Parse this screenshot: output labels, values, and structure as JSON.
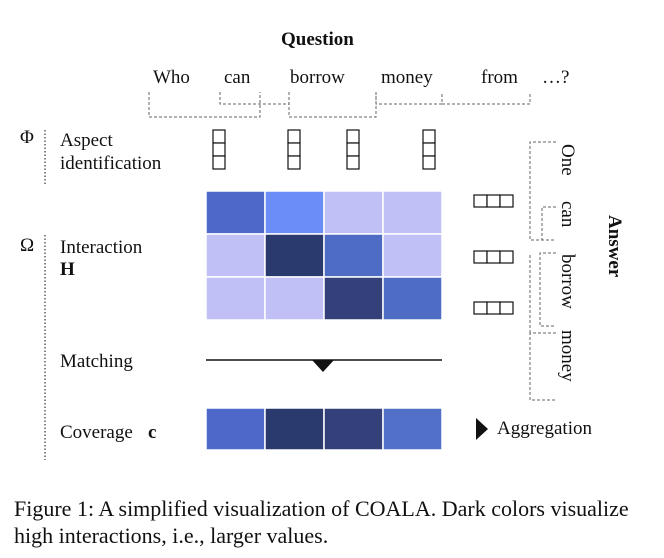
{
  "question": {
    "title": "Question",
    "tokens": [
      "Who",
      "can",
      "borrow",
      "money",
      "from",
      "…?"
    ]
  },
  "answer": {
    "title": "Answer",
    "tokens": [
      "One",
      "can",
      "borrow",
      "money"
    ]
  },
  "section_symbols": {
    "phi": "Φ",
    "omega": "Ω"
  },
  "rows": {
    "aspect": "Aspect identification",
    "aspect_line1": "Aspect",
    "aspect_line2": "identification",
    "interaction": "Interaction",
    "interaction_symbol": "H",
    "matching": "Matching",
    "coverage": "Coverage",
    "coverage_symbol": "c",
    "aggregation": "Aggregation"
  },
  "interaction_matrix": [
    [
      0.62,
      0.4,
      0.08,
      0.1
    ],
    [
      0.08,
      0.95,
      0.62,
      0.1
    ],
    [
      0.08,
      0.08,
      0.92,
      0.62
    ]
  ],
  "coverage_vector": [
    0.62,
    0.95,
    0.9,
    0.58
  ],
  "colors": {
    "cell_light": "#c0c0f7",
    "cell_mid": "#4d6fd3",
    "cell_bright": "#6a8ef5",
    "cell_dark": "#2b3a6e",
    "cell_dark2": "#34407a"
  },
  "caption": "Figure 1: A simplified visualization of COALA. Dark colors visualize high interactions, i.e., larger values."
}
